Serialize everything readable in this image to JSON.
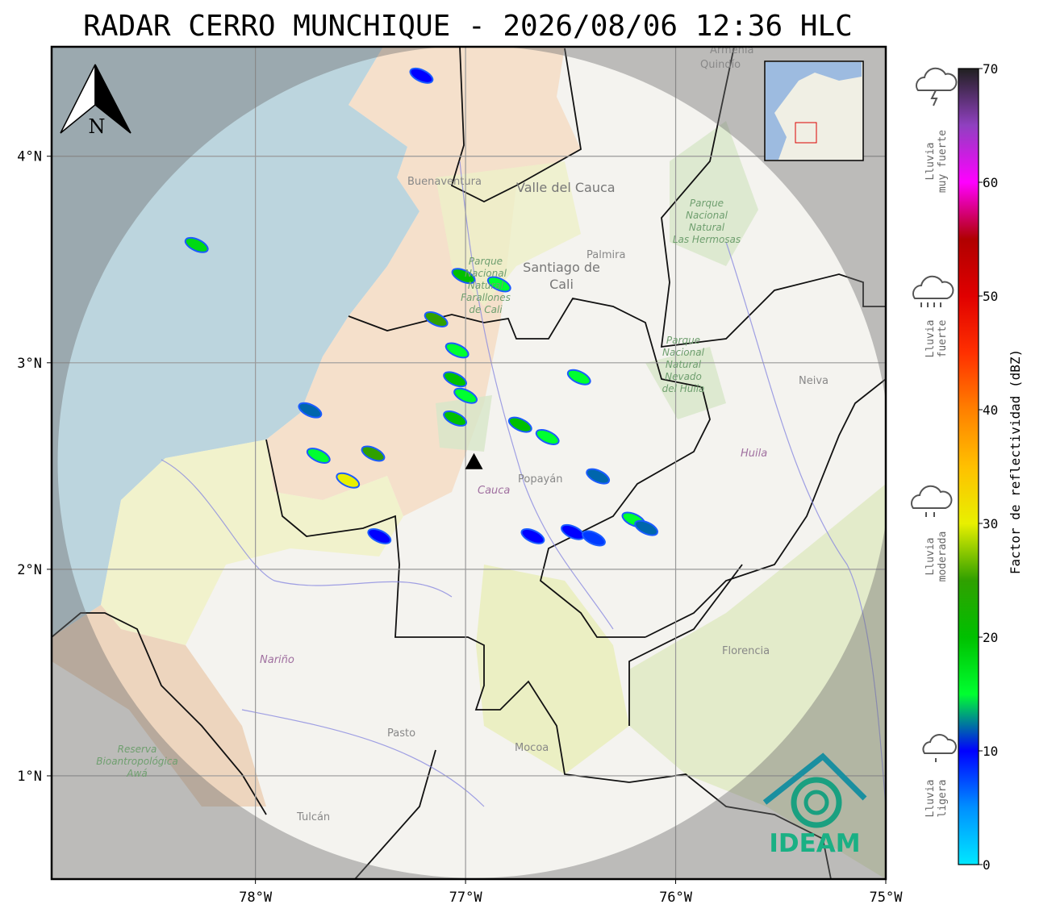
{
  "title": "RADAR CERRO MUNCHIQUE - 2026/08/06 12:36 HLC",
  "map": {
    "lon_range": [
      -78.97,
      -75
    ],
    "lat_range": [
      0.5,
      4.53
    ],
    "lon_ticks": [
      {
        "value": -78,
        "label": "78°W"
      },
      {
        "value": -77,
        "label": "77°W"
      },
      {
        "value": -76,
        "label": "76°W"
      },
      {
        "value": -75,
        "label": "75°W"
      }
    ],
    "lat_ticks": [
      {
        "value": 4,
        "label": "4°N"
      },
      {
        "value": 3,
        "label": "3°N"
      },
      {
        "value": 2,
        "label": "2°N"
      },
      {
        "value": 1,
        "label": "1°N"
      }
    ],
    "grid": true,
    "radar_site": {
      "lon": -76.96,
      "lat": 2.52
    },
    "echoes": [
      {
        "lon": -77.01,
        "lat": 3.42,
        "dbz": 20
      },
      {
        "lon": -76.84,
        "lat": 3.38,
        "dbz": 15
      },
      {
        "lon": -77.14,
        "lat": 3.21,
        "dbz": 25
      },
      {
        "lon": -77.04,
        "lat": 3.06,
        "dbz": 15
      },
      {
        "lon": -77.05,
        "lat": 2.92,
        "dbz": 20
      },
      {
        "lon": -77.0,
        "lat": 2.84,
        "dbz": 15
      },
      {
        "lon": -77.05,
        "lat": 2.73,
        "dbz": 20
      },
      {
        "lon": -76.74,
        "lat": 2.7,
        "dbz": 20
      },
      {
        "lon": -76.61,
        "lat": 2.64,
        "dbz": 15
      },
      {
        "lon": -76.46,
        "lat": 2.93,
        "dbz": 15
      },
      {
        "lon": -77.7,
        "lat": 2.55,
        "dbz": 15
      },
      {
        "lon": -77.56,
        "lat": 2.43,
        "dbz": 30
      },
      {
        "lon": -77.44,
        "lat": 2.56,
        "dbz": 25
      },
      {
        "lon": -76.37,
        "lat": 2.45,
        "dbz": 12
      },
      {
        "lon": -76.2,
        "lat": 2.24,
        "dbz": 15
      },
      {
        "lon": -76.14,
        "lat": 2.2,
        "dbz": 12
      },
      {
        "lon": -76.68,
        "lat": 2.16,
        "dbz": 10
      },
      {
        "lon": -76.49,
        "lat": 2.18,
        "dbz": 10
      },
      {
        "lon": -76.39,
        "lat": 2.15,
        "dbz": 8
      },
      {
        "lon": -77.74,
        "lat": 2.77,
        "dbz": 12
      },
      {
        "lon": -77.21,
        "lat": 4.39,
        "dbz": 10
      },
      {
        "lon": -78.28,
        "lat": 3.57,
        "dbz": 18
      },
      {
        "lon": -77.41,
        "lat": 2.16,
        "dbz": 10
      }
    ],
    "places": [
      "Buenaventura",
      "Valle del Cauca",
      "Santiago de",
      "Cali",
      "Palmira",
      "Neiva",
      "Huila",
      "Cauca",
      "Popayán",
      "Nariño",
      "Pasto",
      "Mocoa",
      "Florencia",
      "Tulcán",
      "Armenia",
      "Quindío"
    ],
    "parks": [
      [
        "Parque",
        "Nacional",
        "Natural",
        "Farallones",
        "de Cali"
      ],
      [
        "Parque",
        "Nacional",
        "Natural",
        "Las Hermosas"
      ],
      [
        "Parque",
        "Nacional",
        "Natural",
        "Nevado",
        "del Huila"
      ],
      [
        "Reserva",
        "Bioantropológica",
        "Awá"
      ]
    ],
    "north": "N",
    "logo": "IDEAM"
  },
  "colorbar": {
    "range": [
      0,
      70
    ],
    "ticks": [
      0,
      10,
      20,
      30,
      40,
      50,
      60,
      70
    ],
    "label": "Factor de reflectividad (dBZ)",
    "colors": [
      "#00e8ff",
      "#0090ff",
      "#0000ff",
      "#00ff30",
      "#00c000",
      "#30a000",
      "#e8f000",
      "#ffc000",
      "#ff8000",
      "#ff3000",
      "#e00000",
      "#b00000",
      "#ff00ff",
      "#9040c0",
      "#202020"
    ]
  },
  "rain_levels": [
    [
      "Lluvia",
      "muy fuerte"
    ],
    [
      "Lluvia",
      "fuerte"
    ],
    [
      "Lluvia",
      "moderada"
    ],
    [
      "Lluvia",
      "ligera"
    ]
  ]
}
